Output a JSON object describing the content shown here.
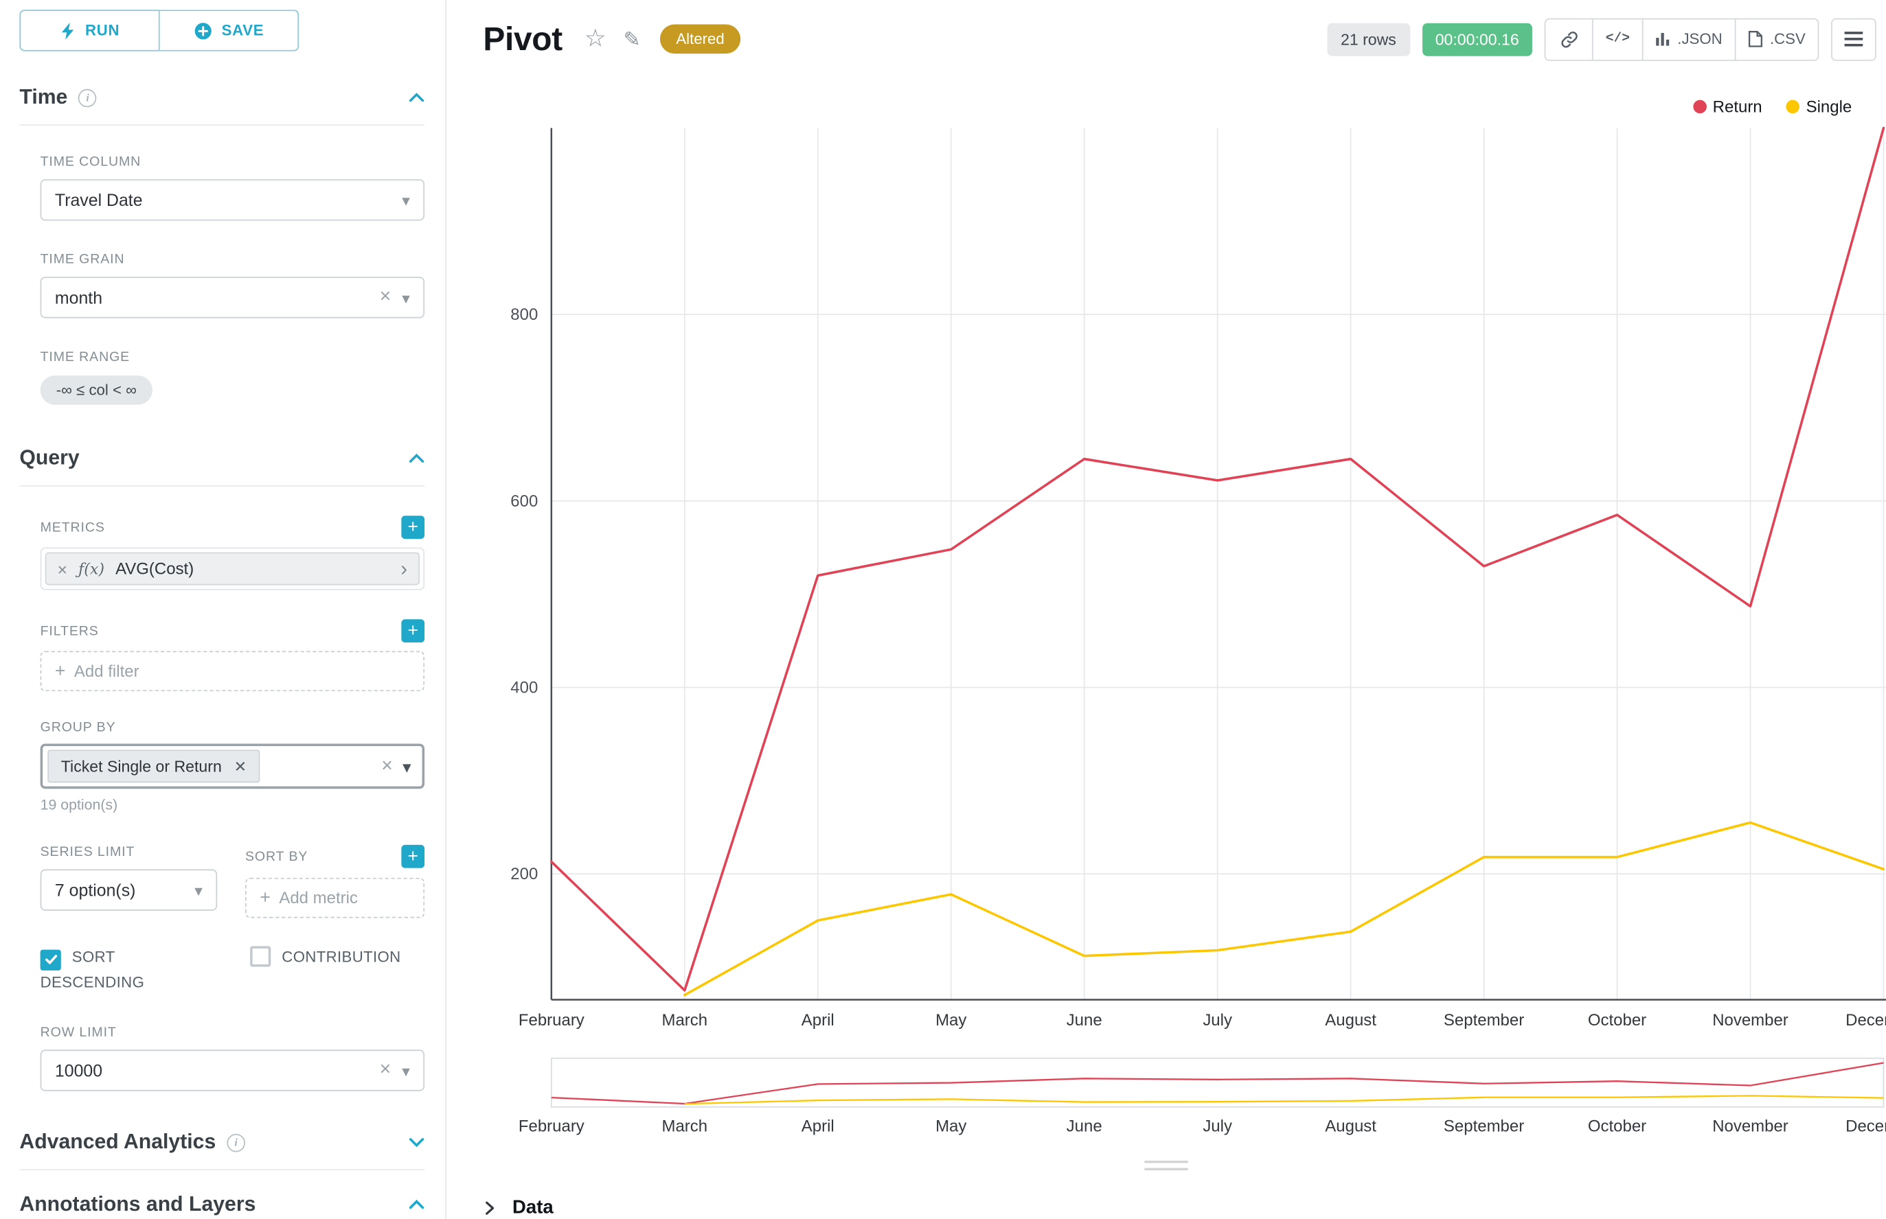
{
  "app": {
    "accent": "#1fa8c9"
  },
  "sidebar": {
    "run_label": "RUN",
    "save_label": "SAVE",
    "time_section": "Time",
    "time_column_label": "TIME COLUMN",
    "time_column_value": "Travel Date",
    "time_grain_label": "TIME GRAIN",
    "time_grain_value": "month",
    "time_range_label": "TIME RANGE",
    "time_range_value": "-∞ ≤ col < ∞",
    "query_section": "Query",
    "metrics_label": "METRICS",
    "metric_fx": "ƒ(x)",
    "metric_value": "AVG(Cost)",
    "filters_label": "FILTERS",
    "add_filter_placeholder": "Add filter",
    "group_by_label": "GROUP BY",
    "group_by_chip": "Ticket Single or Return",
    "group_by_hint": "19 option(s)",
    "series_limit_label": "SERIES LIMIT",
    "series_limit_value": "7 option(s)",
    "sort_by_label": "SORT BY",
    "add_metric_placeholder": "Add metric",
    "sort_descending_label": "SORT DESCENDING",
    "contribution_label": "CONTRIBUTION",
    "row_limit_label": "ROW LIMIT",
    "row_limit_value": "10000",
    "advanced_section": "Advanced Analytics",
    "annotations_section": "Annotations and Layers"
  },
  "header": {
    "title": "Pivot",
    "altered_badge": "Altered",
    "altered_color": "#c79b22",
    "row_count": "21 rows",
    "timer": "00:00:00.16",
    "timer_color": "#5ac189",
    "json_label": ".JSON",
    "csv_label": ".CSV"
  },
  "chart_data": {
    "type": "line",
    "title": "",
    "categories": [
      "February",
      "March",
      "April",
      "May",
      "June",
      "July",
      "August",
      "September",
      "October",
      "November",
      "December"
    ],
    "series": [
      {
        "name": "Return",
        "color": "#e04355",
        "values": [
          213,
          75,
          520,
          548,
          645,
          622,
          645,
          530,
          585,
          487,
          1000
        ]
      },
      {
        "name": "Single",
        "color": "#fcc700",
        "values": [
          null,
          70,
          150,
          178,
          112,
          118,
          138,
          218,
          218,
          255,
          205
        ]
      }
    ],
    "yticks": [
      200,
      400,
      600,
      800
    ],
    "ylim": [
      65,
      1000
    ],
    "grid": true,
    "legend_position": "top-right",
    "has_mini_preview": true
  },
  "footer": {
    "data_label": "Data"
  }
}
